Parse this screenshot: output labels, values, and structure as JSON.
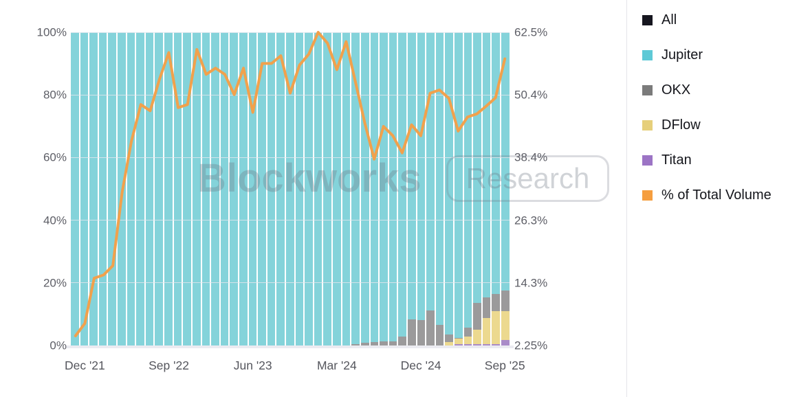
{
  "watermark": {
    "brand": "Blockworks",
    "badge": "Research"
  },
  "legend": {
    "items": [
      {
        "label": "All",
        "color": "#16161f"
      },
      {
        "label": "Jupiter",
        "color": "#5ec9d6"
      },
      {
        "label": "OKX",
        "color": "#7b7b7b"
      },
      {
        "label": "DFlow",
        "color": "#e6cf7b"
      },
      {
        "label": "Titan",
        "color": "#9c74c5"
      },
      {
        "label": "% of Total Volume",
        "color": "#f59e3f"
      }
    ]
  },
  "chart_data": {
    "type": "bar",
    "stacking": "percent",
    "title": "",
    "xlabel": "",
    "ylabel": "",
    "grid": true,
    "legend_position": "right",
    "x": [
      "Nov '21",
      "Dec '21",
      "Jan '22",
      "Feb '22",
      "Mar '22",
      "Apr '22",
      "May '22",
      "Jun '22",
      "Jul '22",
      "Aug '22",
      "Sep '22",
      "Oct '22",
      "Nov '22",
      "Dec '22",
      "Jan '23",
      "Feb '23",
      "Mar '23",
      "Apr '23",
      "May '23",
      "Jun '23",
      "Jul '23",
      "Aug '23",
      "Sep '23",
      "Oct '23",
      "Nov '23",
      "Dec '23",
      "Jan '24",
      "Feb '24",
      "Mar '24",
      "Apr '24",
      "May '24",
      "Jun '24",
      "Jul '24",
      "Aug '24",
      "Sep '24",
      "Oct '24",
      "Nov '24",
      "Dec '24",
      "Jan '25",
      "Feb '25",
      "Mar '25",
      "Apr '25",
      "May '25",
      "Jun '25",
      "Jul '25",
      "Aug '25",
      "Sep '25"
    ],
    "x_ticks": [
      {
        "label": "Dec '21",
        "index": 1
      },
      {
        "label": "Sep '22",
        "index": 10
      },
      {
        "label": "Jun '23",
        "index": 19
      },
      {
        "label": "Mar '24",
        "index": 28
      },
      {
        "label": "Dec '24",
        "index": 37
      },
      {
        "label": "Sep '25",
        "index": 46
      }
    ],
    "left_axis": {
      "labels": [
        "0%",
        "20%",
        "40%",
        "60%",
        "80%",
        "100%"
      ],
      "values": [
        0,
        20,
        40,
        60,
        80,
        100
      ],
      "range": [
        0,
        100
      ]
    },
    "right_axis": {
      "labels": [
        "2.25%",
        "14.3%",
        "26.3%",
        "38.4%",
        "50.4%",
        "62.5%"
      ],
      "values": [
        0,
        20,
        40,
        60,
        80,
        100
      ],
      "range": [
        2.25,
        62.5
      ]
    },
    "series": [
      {
        "name": "Jupiter",
        "type": "bar",
        "color": "#84d3da",
        "values": [
          100,
          100,
          100,
          100,
          100,
          100,
          100,
          100,
          100,
          100,
          100,
          100,
          100,
          100,
          100,
          100,
          100,
          100,
          100,
          100,
          100,
          100,
          100,
          100,
          100,
          100,
          100,
          100,
          100,
          100,
          99.6,
          99.2,
          98.8,
          98.7,
          98.7,
          97.1,
          91.6,
          91.9,
          88.8,
          93.4,
          96.6,
          97.6,
          94.4,
          86.4,
          84.6,
          83.6,
          82.5
        ]
      },
      {
        "name": "OKX",
        "type": "bar",
        "color": "#9b9a9b",
        "values": [
          0,
          0,
          0,
          0,
          0,
          0,
          0,
          0,
          0,
          0,
          0,
          0,
          0,
          0,
          0,
          0,
          0,
          0,
          0,
          0,
          0,
          0,
          0,
          0,
          0,
          0,
          0,
          0,
          0,
          0,
          0.4,
          0.8,
          1.2,
          1.3,
          1.3,
          2.9,
          8.4,
          8.1,
          11.2,
          6.6,
          2.3,
          0.2,
          2.8,
          8.5,
          6.7,
          5.5,
          6.6
        ]
      },
      {
        "name": "DFlow",
        "type": "bar",
        "color": "#ecd98f",
        "values": [
          0,
          0,
          0,
          0,
          0,
          0,
          0,
          0,
          0,
          0,
          0,
          0,
          0,
          0,
          0,
          0,
          0,
          0,
          0,
          0,
          0,
          0,
          0,
          0,
          0,
          0,
          0,
          0,
          0,
          0,
          0,
          0,
          0,
          0,
          0,
          0,
          0,
          0,
          0,
          0,
          1.0,
          1.7,
          2.4,
          4.7,
          8.3,
          10.5,
          9.1
        ]
      },
      {
        "name": "Titan",
        "type": "bar",
        "color": "#a98bc8",
        "values": [
          0,
          0,
          0,
          0,
          0,
          0,
          0,
          0,
          0,
          0,
          0,
          0,
          0,
          0,
          0,
          0,
          0,
          0,
          0,
          0,
          0,
          0,
          0,
          0,
          0,
          0,
          0,
          0,
          0,
          0,
          0,
          0,
          0,
          0,
          0,
          0,
          0,
          0,
          0,
          0,
          0.1,
          0.5,
          0.4,
          0.4,
          0.4,
          0.4,
          1.8
        ]
      },
      {
        "name": "% of Total Volume",
        "type": "line",
        "color": "#f1a14c",
        "axis": "right",
        "values": [
          4.1,
          6.5,
          15.2,
          15.8,
          17.6,
          31.8,
          41.6,
          48.6,
          47.4,
          53.5,
          58.6,
          48.0,
          48.6,
          59.2,
          54.4,
          55.6,
          54.4,
          50.5,
          55.6,
          47.1,
          56.5,
          56.5,
          58.0,
          50.8,
          56.2,
          58.3,
          62.5,
          60.4,
          55.3,
          60.7,
          52.9,
          45.0,
          38.1,
          44.4,
          42.6,
          39.3,
          44.7,
          42.6,
          50.8,
          51.4,
          49.8,
          43.5,
          46.2,
          46.8,
          48.3,
          49.9,
          57.4
        ]
      }
    ]
  }
}
